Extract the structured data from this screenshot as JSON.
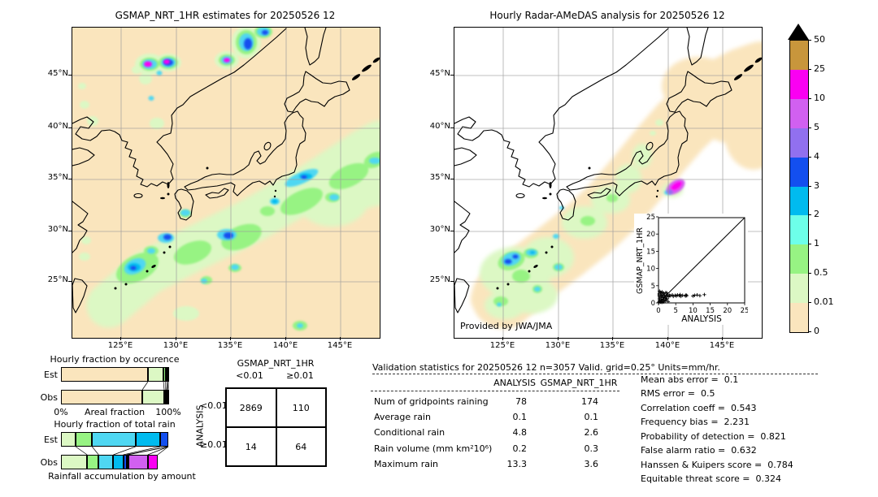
{
  "left_map": {
    "title": "GSMAP_NRT_1HR estimates for 20250526 12",
    "x_ticks": [
      "125°E",
      "130°E",
      "135°E",
      "140°E",
      "145°E"
    ],
    "y_ticks": [
      "45°N",
      "40°N",
      "35°N",
      "30°N",
      "25°N"
    ]
  },
  "right_map": {
    "title": "Hourly Radar-AMeDAS analysis for 20250526 12",
    "credit": "Provided by JWA/JMA",
    "x_ticks": [
      "125°E",
      "130°E",
      "135°E",
      "140°E",
      "145°E"
    ],
    "y_ticks": [
      "45°N",
      "40°N",
      "35°N",
      "30°N",
      "25°N"
    ]
  },
  "colorbar": {
    "units": "mm/hr",
    "labels": [
      "50",
      "25",
      "10",
      "5",
      "4",
      "3",
      "2",
      "1",
      "0.5",
      "0.01",
      "0"
    ],
    "colors": [
      "#c8963c",
      "#fa00f2",
      "#d160f0",
      "#9170ef",
      "#134fef",
      "#00bbef",
      "#6dffe9",
      "#97f383",
      "#dcf8c4",
      "#fae5bd"
    ],
    "overflow_color": "#000000"
  },
  "chart_data": [
    {
      "id": "occurrence_fraction",
      "type": "bar",
      "orientation": "horizontal-stacked",
      "title": "Hourly fraction by occurence",
      "xlabel": "Areal fraction",
      "x_end_labels": [
        "0%",
        "100%"
      ],
      "bins_mm_hr": [
        "0-0.01",
        "0.01-0.5",
        "0.5-1",
        "1-2",
        "2-3",
        "3-4"
      ],
      "series": [
        {
          "name": "Est",
          "segments": [
            {
              "fraction": 0.81,
              "color": "#fae5bd"
            },
            {
              "fraction": 0.145,
              "color": "#dcf8c4"
            },
            {
              "fraction": 0.02,
              "color": "#97f383"
            },
            {
              "fraction": 0.015,
              "color": "#4fd7f2"
            },
            {
              "fraction": 0.01,
              "color": "#00bbef"
            }
          ]
        },
        {
          "name": "Obs",
          "segments": [
            {
              "fraction": 0.758,
              "color": "#fae5bd"
            },
            {
              "fraction": 0.204,
              "color": "#dcf8c4"
            },
            {
              "fraction": 0.014,
              "color": "#97f383"
            },
            {
              "fraction": 0.008,
              "color": "#4fd7f2"
            },
            {
              "fraction": 0.008,
              "color": "#00bbef"
            },
            {
              "fraction": 0.008,
              "color": "#134fef"
            }
          ]
        }
      ]
    },
    {
      "id": "total_rain_fraction",
      "type": "bar",
      "orientation": "horizontal-stacked",
      "title": "Hourly fraction of total rain",
      "xlabel": "Rainfall accumulation by amount",
      "bins_mm_hr": [
        "0.01-0.5",
        "0.5-1",
        "1-2",
        "2-3",
        "3-4",
        "4-5",
        "5-10",
        "10-25"
      ],
      "series": [
        {
          "name": "Est",
          "segments": [
            {
              "fraction": 0.137,
              "color": "#dcf8c4"
            },
            {
              "fraction": 0.153,
              "color": "#97f383"
            },
            {
              "fraction": 0.405,
              "color": "#4fd7f2"
            },
            {
              "fraction": 0.229,
              "color": "#00bbef"
            },
            {
              "fraction": 0.076,
              "color": "#134fef"
            }
          ]
        },
        {
          "name": "Obs",
          "segments": [
            {
              "fraction": 0.244,
              "color": "#dcf8c4"
            },
            {
              "fraction": 0.107,
              "color": "#97f383"
            },
            {
              "fraction": 0.137,
              "color": "#4fd7f2"
            },
            {
              "fraction": 0.092,
              "color": "#00bbef"
            },
            {
              "fraction": 0.031,
              "color": "#134fef"
            },
            {
              "fraction": 0.015,
              "color": "#9170ef"
            },
            {
              "fraction": 0.183,
              "color": "#d160f0"
            },
            {
              "fraction": 0.092,
              "color": "#fa00f2"
            }
          ]
        }
      ]
    },
    {
      "id": "contingency_table",
      "type": "table",
      "col_group": "GSMAP_NRT_1HR",
      "row_group": "ANALYSIS",
      "col_labels": [
        "<0.01",
        "≥0.01"
      ],
      "row_labels": [
        "<0.01",
        "≥0.01"
      ],
      "values": [
        [
          "2869",
          "110"
        ],
        [
          "14",
          "64"
        ]
      ]
    },
    {
      "id": "validation_stats",
      "type": "table",
      "title": "Validation statistics for 20250526 12  n=3057 Valid. grid=0.25° Units=mm/hr.",
      "columns": [
        "ANALYSIS",
        "GSMAP_NRT_1HR"
      ],
      "rows": [
        {
          "label": "Num of gridpoints raining",
          "analysis": "78",
          "gsmap": "174"
        },
        {
          "label": "Average rain",
          "analysis": "0.1",
          "gsmap": "0.1"
        },
        {
          "label": "Conditional rain",
          "analysis": "4.8",
          "gsmap": "2.6"
        },
        {
          "label": "Rain volume (mm km²10⁶)",
          "analysis": "0.2",
          "gsmap": "0.3"
        },
        {
          "label": "Maximum rain",
          "analysis": "13.3",
          "gsmap": "3.6"
        }
      ]
    },
    {
      "id": "skill_scores",
      "type": "list",
      "rows": [
        {
          "label": "Mean abs error",
          "value": "0.1"
        },
        {
          "label": "RMS error",
          "value": "0.5"
        },
        {
          "label": "Correlation coeff",
          "value": "0.543"
        },
        {
          "label": "Frequency bias",
          "value": "2.231"
        },
        {
          "label": "Probability of detection",
          "value": "0.821"
        },
        {
          "label": "False alarm ratio",
          "value": "0.632"
        },
        {
          "label": "Hanssen & Kuipers score",
          "value": "0.784"
        },
        {
          "label": "Equitable threat score",
          "value": "0.324"
        }
      ]
    },
    {
      "id": "inset_scatter",
      "type": "scatter",
      "xlabel": "ANALYSIS",
      "ylabel": "GSMAP_NRT_1HR",
      "xlim": [
        0,
        25
      ],
      "ylim": [
        0,
        25
      ],
      "ticks": [
        0,
        5,
        10,
        15,
        20,
        25
      ],
      "diagonal": true,
      "points": [
        [
          0.1,
          0.1
        ],
        [
          0.2,
          0.4
        ],
        [
          0.3,
          1.2
        ],
        [
          0.2,
          2.1
        ],
        [
          0.5,
          0.3
        ],
        [
          0.5,
          1.6
        ],
        [
          0.6,
          2.6
        ],
        [
          0.7,
          0.2
        ],
        [
          0.8,
          1.1
        ],
        [
          0.9,
          2.9
        ],
        [
          1.0,
          0.5
        ],
        [
          1.0,
          1.9
        ],
        [
          1.1,
          3.2
        ],
        [
          1.2,
          0.8
        ],
        [
          1.3,
          2.3
        ],
        [
          1.4,
          1.5
        ],
        [
          1.5,
          0.3
        ],
        [
          1.5,
          2.8
        ],
        [
          1.6,
          1.0
        ],
        [
          1.8,
          2.2
        ],
        [
          1.9,
          0.6
        ],
        [
          2.0,
          1.4
        ],
        [
          2.1,
          3.0
        ],
        [
          2.2,
          0.9
        ],
        [
          2.3,
          2.0
        ],
        [
          2.5,
          1.2
        ],
        [
          2.6,
          2.4
        ],
        [
          2.8,
          0.4
        ],
        [
          3.0,
          1.8
        ],
        [
          3.2,
          2.2
        ],
        [
          3.5,
          2.1
        ],
        [
          4.0,
          2.3
        ],
        [
          4.3,
          1.9
        ],
        [
          4.8,
          2.2
        ],
        [
          5.2,
          2.0
        ],
        [
          5.5,
          2.3
        ],
        [
          6.0,
          2.1
        ],
        [
          6.3,
          2.4
        ],
        [
          6.5,
          1.9
        ],
        [
          7.0,
          2.2
        ],
        [
          7.8,
          2.0
        ],
        [
          8.0,
          2.3
        ],
        [
          8.2,
          2.1
        ],
        [
          10.0,
          2.0
        ],
        [
          10.5,
          2.2
        ],
        [
          11.2,
          2.3
        ],
        [
          12.0,
          2.1
        ],
        [
          13.3,
          2.4
        ],
        [
          0.3,
          3.4
        ],
        [
          0.6,
          3.1
        ],
        [
          0.2,
          2.6
        ],
        [
          1.1,
          0.2
        ],
        [
          0.4,
          0.8
        ],
        [
          2.4,
          2.9
        ],
        [
          0.8,
          2.0
        ],
        [
          1.7,
          1.7
        ]
      ]
    },
    {
      "id": "precip_maps",
      "type": "heatmap",
      "maps": [
        "GSMAP_NRT_1HR estimates for 20250526 12",
        "Hourly Radar-AMeDAS analysis for 20250526 12"
      ],
      "units": "mm/hr",
      "levels": [
        0,
        0.01,
        0.5,
        1,
        2,
        3,
        4,
        5,
        10,
        25,
        50
      ],
      "extent": {
        "lon": [
          121,
          149
        ],
        "lat": [
          20,
          50
        ]
      },
      "notes": "Left: satellite rain band SW-NE along southern Japan with embedded 2-4 mm/hr cores and 10-25 mm/hr cells over NE China/Primorye. Right: radar coverage (0-0.01 beige) along Japan, light rain SW of Kyushu/Okinawa, one 10-25 mm/hr cell SE of Kanto."
    }
  ]
}
